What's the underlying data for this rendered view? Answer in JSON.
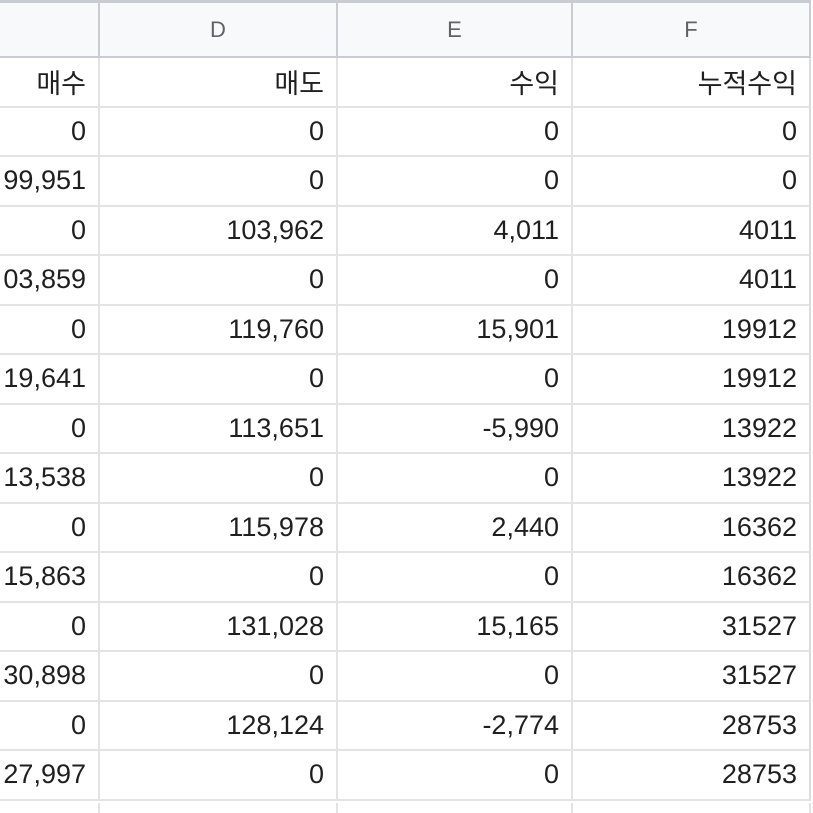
{
  "column_headers": [
    "",
    "D",
    "E",
    "F"
  ],
  "header_row": [
    "매수",
    "매도",
    "수익",
    "누적수익"
  ],
  "rows": [
    [
      "0",
      "0",
      "0",
      "0"
    ],
    [
      "99,951",
      "0",
      "0",
      "0"
    ],
    [
      "0",
      "103,962",
      "4,011",
      "4011"
    ],
    [
      "03,859",
      "0",
      "0",
      "4011"
    ],
    [
      "0",
      "119,760",
      "15,901",
      "19912"
    ],
    [
      "19,641",
      "0",
      "0",
      "19912"
    ],
    [
      "0",
      "113,651",
      "-5,990",
      "13922"
    ],
    [
      "13,538",
      "0",
      "0",
      "13922"
    ],
    [
      "0",
      "115,978",
      "2,440",
      "16362"
    ],
    [
      "15,863",
      "0",
      "0",
      "16362"
    ],
    [
      "0",
      "131,028",
      "15,165",
      "31527"
    ],
    [
      "30,898",
      "0",
      "0",
      "31527"
    ],
    [
      "0",
      "128,124",
      "-2,774",
      "28753"
    ],
    [
      "27,997",
      "0",
      "0",
      "28753"
    ]
  ]
}
